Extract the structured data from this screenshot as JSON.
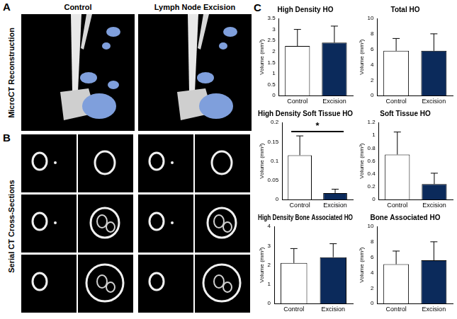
{
  "figure": {
    "panel_labels": [
      "A",
      "B",
      "C"
    ],
    "column_headers": [
      "Control",
      "Lymph Node Excision"
    ],
    "row_labels": [
      "MicroCT Reconstruction",
      "Serial CT Cross-Sections"
    ]
  },
  "chart_data": [
    {
      "type": "bar",
      "title": "High Density HO",
      "y_label": "Volume (mm³)",
      "categories": [
        "Control",
        "Excision"
      ],
      "values": [
        2.25,
        2.4
      ],
      "errors": [
        0.75,
        0.75
      ],
      "colors": [
        "#ffffff",
        "#0b2a5b"
      ],
      "ylim": [
        0,
        3.5
      ],
      "yticks": [
        0,
        0.5,
        1,
        1.5,
        2,
        2.5,
        3,
        3.5
      ],
      "grid": false
    },
    {
      "type": "bar",
      "title": "Total HO",
      "y_label": "Volume (mm³)",
      "categories": [
        "Control",
        "Excision"
      ],
      "values": [
        5.8,
        5.8
      ],
      "errors": [
        1.6,
        2.2
      ],
      "colors": [
        "#ffffff",
        "#0b2a5b"
      ],
      "ylim": [
        0,
        10
      ],
      "yticks": [
        0,
        2,
        4,
        6,
        8,
        10
      ],
      "grid": false
    },
    {
      "type": "bar",
      "title": "High Density Soft Tissue HO",
      "y_label": "Volume (mm³)",
      "categories": [
        "Control",
        "Excision"
      ],
      "values": [
        0.115,
        0.017
      ],
      "errors": [
        0.05,
        0.01
      ],
      "colors": [
        "#ffffff",
        "#0b2a5b"
      ],
      "ylim": [
        0,
        0.2
      ],
      "yticks": [
        0,
        0.05,
        0.1,
        0.15,
        0.2
      ],
      "grid": false,
      "annotations": [
        {
          "text": "*",
          "between": [
            "Control",
            "Excision"
          ]
        }
      ]
    },
    {
      "type": "bar",
      "title": "Soft Tissue HO",
      "y_label": "Volume (mm³)",
      "categories": [
        "Control",
        "Excision"
      ],
      "values": [
        0.7,
        0.24
      ],
      "errors": [
        0.35,
        0.17
      ],
      "colors": [
        "#ffffff",
        "#0b2a5b"
      ],
      "ylim": [
        0,
        1.2
      ],
      "yticks": [
        0,
        0.2,
        0.4,
        0.6,
        0.8,
        1,
        1.2
      ],
      "grid": false
    },
    {
      "type": "bar",
      "title": "High Density Bone Associated HO",
      "y_label": "Volume (mm³)",
      "categories": [
        "Control",
        "Excision"
      ],
      "values": [
        2.1,
        2.4
      ],
      "errors": [
        0.75,
        0.7
      ],
      "colors": [
        "#ffffff",
        "#0b2a5b"
      ],
      "ylim": [
        0,
        4
      ],
      "yticks": [
        0,
        1,
        2,
        3,
        4
      ],
      "grid": false
    },
    {
      "type": "bar",
      "title": "Bone Associated HO",
      "y_label": "Volume (mm³)",
      "categories": [
        "Control",
        "Excision"
      ],
      "values": [
        5.1,
        5.6
      ],
      "errors": [
        1.7,
        2.4
      ],
      "colors": [
        "#ffffff",
        "#0b2a5b"
      ],
      "ylim": [
        0,
        10
      ],
      "yticks": [
        0,
        2,
        4,
        6,
        8,
        10
      ],
      "grid": false
    }
  ]
}
